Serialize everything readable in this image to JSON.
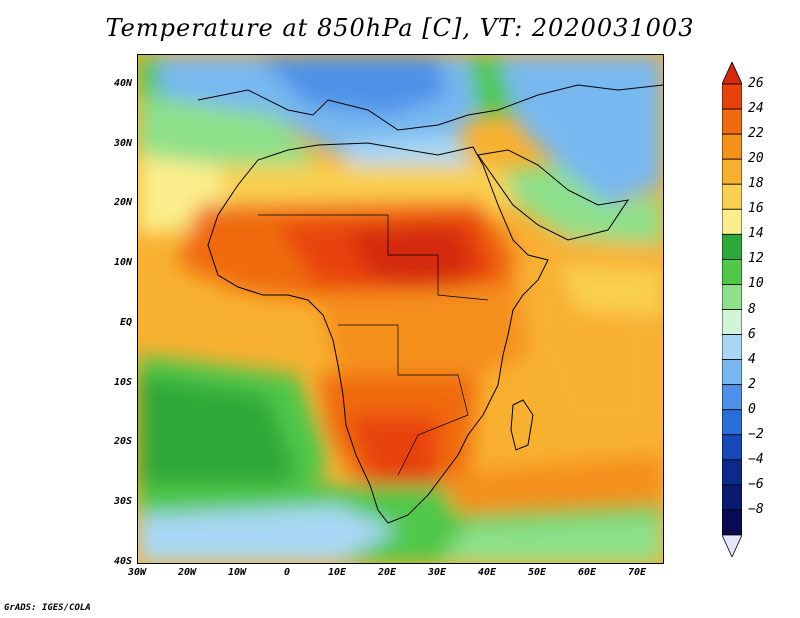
{
  "title": "Temperature at 850hPa [C], VT: 2020031003",
  "credit": "GrADS: IGES/COLA",
  "map": {
    "lon_range": [
      -30,
      75
    ],
    "lat_range": [
      -40,
      45
    ],
    "lat_ticks": [
      {
        "value": 40,
        "label": "40N"
      },
      {
        "value": 30,
        "label": "30N"
      },
      {
        "value": 20,
        "label": "20N"
      },
      {
        "value": 10,
        "label": "10N"
      },
      {
        "value": 0,
        "label": "EQ"
      },
      {
        "value": -10,
        "label": "10S"
      },
      {
        "value": -20,
        "label": "20S"
      },
      {
        "value": -30,
        "label": "30S"
      },
      {
        "value": -40,
        "label": "40S"
      }
    ],
    "lon_ticks": [
      {
        "value": -30,
        "label": "30W"
      },
      {
        "value": -20,
        "label": "20W"
      },
      {
        "value": -10,
        "label": "10W"
      },
      {
        "value": 0,
        "label": "0"
      },
      {
        "value": 10,
        "label": "10E"
      },
      {
        "value": 20,
        "label": "20E"
      },
      {
        "value": 30,
        "label": "30E"
      },
      {
        "value": 40,
        "label": "40E"
      },
      {
        "value": 50,
        "label": "50E"
      },
      {
        "value": 60,
        "label": "60E"
      },
      {
        "value": 70,
        "label": "70E"
      }
    ]
  },
  "colorbar": {
    "levels": [
      "26",
      "24",
      "22",
      "20",
      "18",
      "16",
      "14",
      "12",
      "10",
      "8",
      "6",
      "4",
      "2",
      "0",
      "−2",
      "−4",
      "−6",
      "−8"
    ],
    "colors": [
      "#d42a0a",
      "#e8420c",
      "#f06a10",
      "#f5901a",
      "#f8b030",
      "#fad050",
      "#fbee8c",
      "#2ea838",
      "#50c84a",
      "#8ee08a",
      "#d2f5d8",
      "#a8d8f5",
      "#78b8f0",
      "#4d92e8",
      "#2a6ed8",
      "#1848b8",
      "#0c2a8c",
      "#0a1a70",
      "#0a0a50",
      "#e6e6fa"
    ]
  }
}
